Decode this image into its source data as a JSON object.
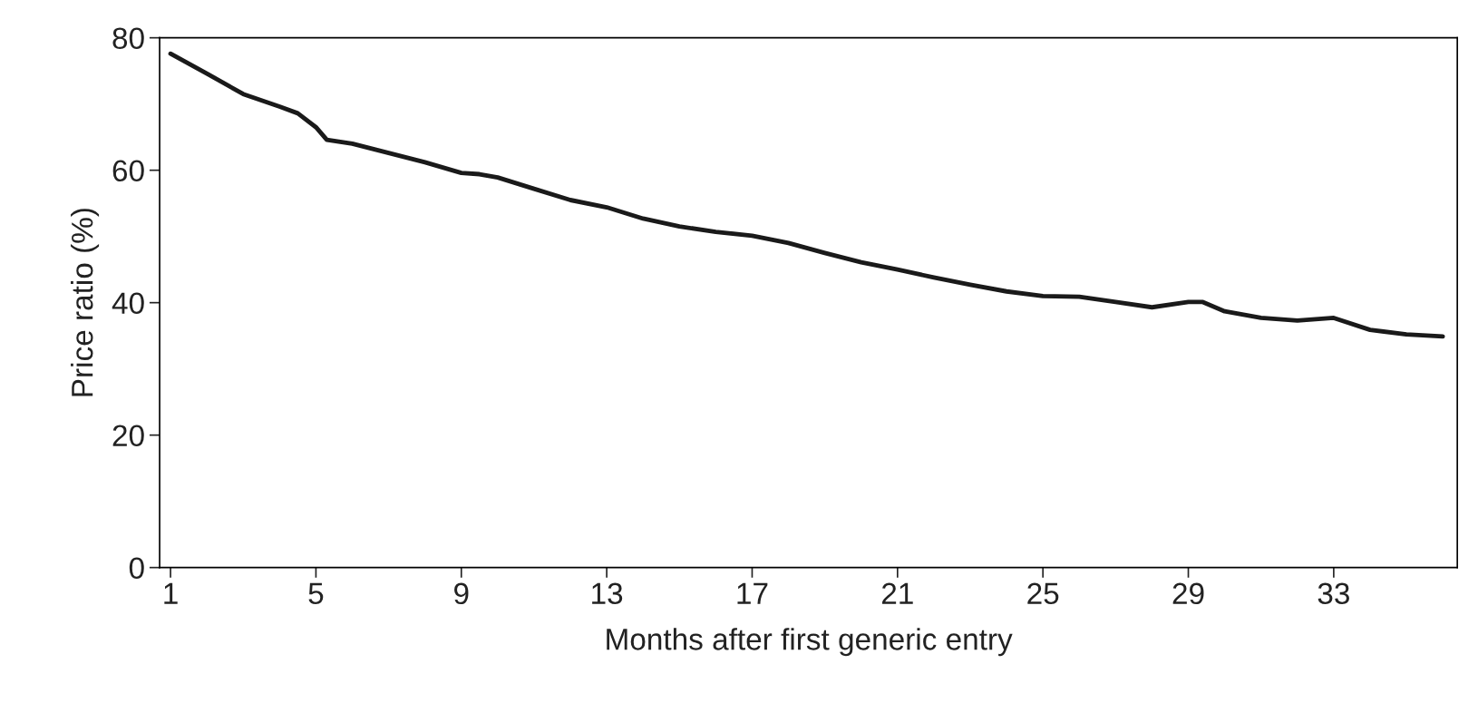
{
  "chart_data": {
    "type": "line",
    "xlabel": "Months after first generic entry",
    "ylabel": "Price ratio (%)",
    "x": [
      1,
      2,
      3,
      4,
      4.5,
      5,
      5.3,
      6,
      7,
      8,
      9,
      9.5,
      10,
      11,
      12,
      13,
      14,
      15,
      16,
      17,
      18,
      19,
      20,
      21,
      22,
      23,
      24,
      25,
      26,
      27,
      28,
      29,
      29.4,
      30,
      31,
      32,
      33,
      34,
      35,
      36
    ],
    "series": [
      {
        "color": "#1a1a1a",
        "values": [
          77.6,
          74.6,
          71.5,
          69.6,
          68.6,
          66.5,
          64.6,
          64,
          62.6,
          61.2,
          59.6,
          59.4,
          58.9,
          57.2,
          55.5,
          54.4,
          52.7,
          51.5,
          50.7,
          50.1,
          49,
          47.5,
          46.1,
          45,
          43.8,
          42.7,
          41.7,
          41,
          40.9,
          40.1,
          39.3,
          40.1,
          40.1,
          38.7,
          37.7,
          37.3,
          37.7,
          35.9,
          35.2,
          34.9
        ]
      }
    ],
    "xlim": [
      0.7,
      36.4
    ],
    "xticks": [
      1,
      5,
      9,
      13,
      17,
      21,
      25,
      29,
      33
    ],
    "ylim": [
      0,
      80
    ],
    "yticks": [
      0,
      20,
      40,
      60,
      80
    ],
    "grid": false,
    "legend": false,
    "marker": "none",
    "line_style": "solid"
  }
}
